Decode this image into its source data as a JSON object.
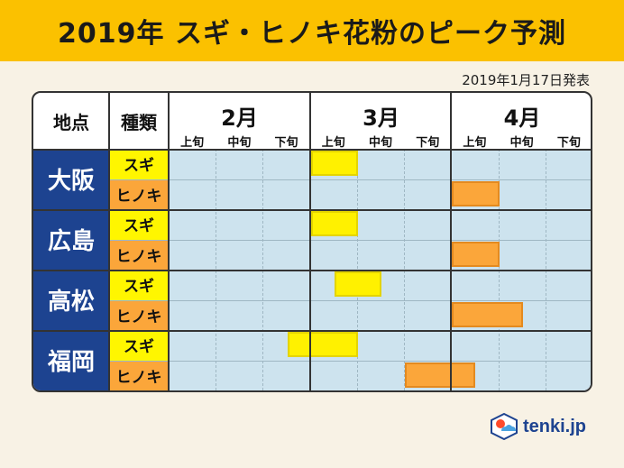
{
  "title": "2019年 スギ・ヒノキ花粉のピーク予測",
  "announcement": "2019年1月17日発表",
  "headers": {
    "location": "地点",
    "kind": "種類"
  },
  "months": [
    "2月",
    "3月",
    "4月"
  ],
  "dekads": [
    "上旬",
    "中旬",
    "下旬"
  ],
  "kinds": {
    "sugi": "スギ",
    "hinoki": "ヒノキ"
  },
  "cities": [
    {
      "name": "大阪",
      "sugi_peak": {
        "start": 3,
        "end": 4
      },
      "hinoki_peak": {
        "start": 6,
        "end": 7
      }
    },
    {
      "name": "広島",
      "sugi_peak": {
        "start": 3,
        "end": 4
      },
      "hinoki_peak": {
        "start": 6,
        "end": 7
      }
    },
    {
      "name": "高松",
      "sugi_peak": {
        "start": 3.5,
        "end": 4.5
      },
      "hinoki_peak": {
        "start": 6,
        "end": 7.5
      }
    },
    {
      "name": "福岡",
      "sugi_peak": {
        "start": 2.5,
        "end": 4
      },
      "hinoki_peak": {
        "start": 5,
        "end": 6.5
      }
    }
  ],
  "logo": {
    "text": "tenki.jp",
    "icon": "tenki-logo-icon"
  },
  "colors": {
    "title_bar": "#fbc100",
    "city_bg": "#1d4390",
    "sugi": "#fff600",
    "hinoki": "#fba63a",
    "grid": "#cde3ee"
  }
}
